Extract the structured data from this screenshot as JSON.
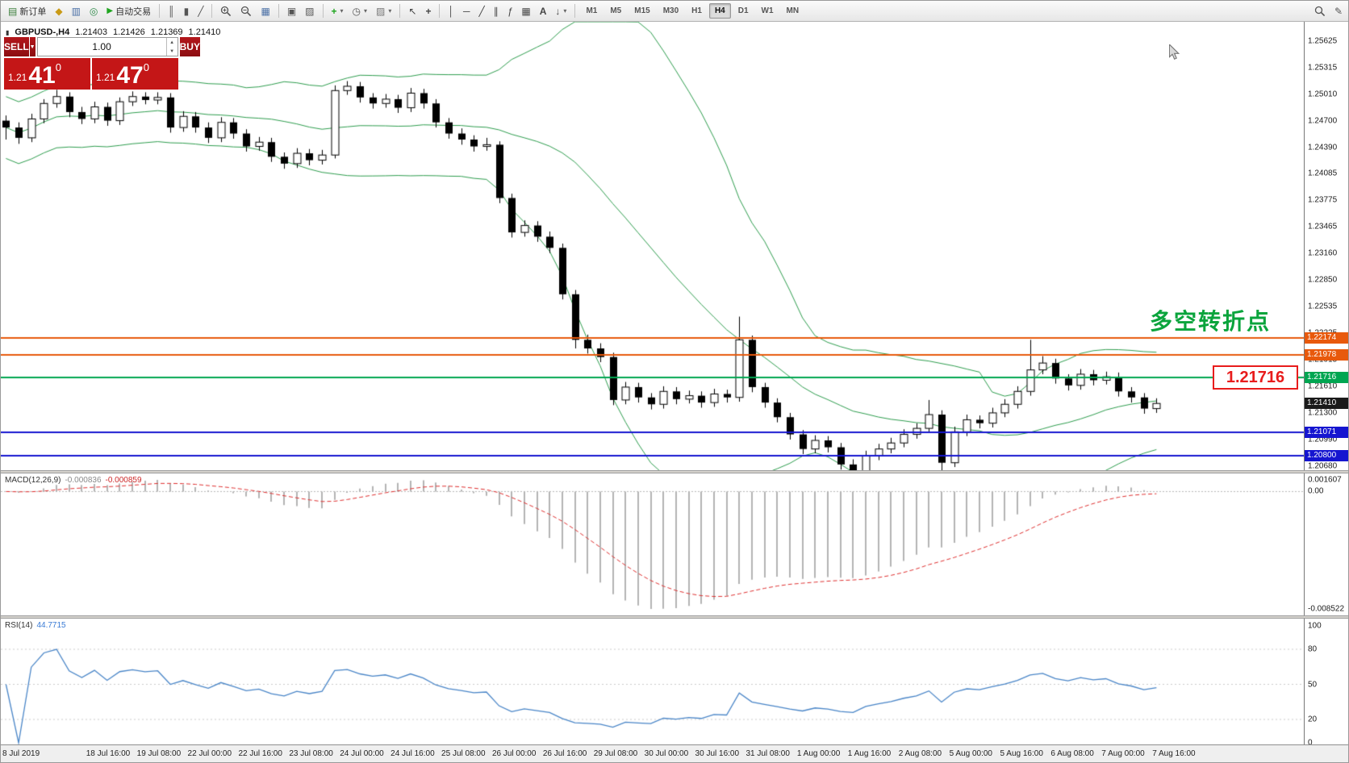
{
  "toolbar": {
    "new_order": "新订单",
    "auto_trading": "自动交易",
    "timeframes": [
      "M1",
      "M5",
      "M15",
      "M30",
      "H1",
      "H4",
      "D1",
      "W1",
      "MN"
    ],
    "active_timeframe": "H4"
  },
  "icons": {
    "chart_doc": "▤",
    "market_watch": "◆",
    "data_window": "▥",
    "navigator": "◎",
    "play": "▶",
    "bar_chart": "║",
    "candle_chart": "▮",
    "line_chart": "╱",
    "grid": "▦",
    "tile": "▣",
    "clock": "◷",
    "template": "▨",
    "cursor": "↖",
    "crosshair": "+",
    "vline": "│",
    "hline": "─",
    "tline": "╱",
    "channel": "∥",
    "fibo": "ƒ",
    "text": "A",
    "arrow_tool": "↓",
    "caret": "▾",
    "pencil": "✎",
    "spin_up": "▲",
    "spin_down": "▼",
    "sell_caret": "▼",
    "symbol_marker": "▮"
  },
  "symbol_bar": {
    "symbol": "GBPUSD-,H4",
    "open": "1.21403",
    "high": "1.21426",
    "low": "1.21369",
    "close": "1.21410"
  },
  "trade_panel": {
    "sell_label": "SELL",
    "buy_label": "BUY",
    "volume": "1.00",
    "sell_price_prefix": "1.21",
    "sell_price_big": "41",
    "sell_price_sup": "0",
    "buy_price_prefix": "1.21",
    "buy_price_big": "47",
    "buy_price_sup": "0"
  },
  "main_chart": {
    "annotation": "多空转折点",
    "price_tag": "1.21716",
    "levels": [
      {
        "label": "1.22174",
        "value": 1.22174,
        "color": "#e8590c"
      },
      {
        "label": "1.21978",
        "value": 1.21978,
        "color": "#e8590c"
      },
      {
        "label": "1.21716",
        "value": 1.21716,
        "color": "#00a651"
      },
      {
        "label": "1.21071",
        "value": 1.21071,
        "color": "#1515d0"
      },
      {
        "label": "1.20800",
        "value": 1.208,
        "color": "#1515d0"
      }
    ],
    "current_price": {
      "label": "1.21410",
      "value": 1.2141,
      "color": "#1a1a1a"
    },
    "y_ticks": [
      "1.25625",
      "1.25315",
      "1.25010",
      "1.24700",
      "1.24390",
      "1.24085",
      "1.23775",
      "1.23465",
      "1.23160",
      "1.22850",
      "1.22535",
      "1.22225",
      "1.21915",
      "1.21610",
      "1.21300",
      "1.20990",
      "1.20680"
    ],
    "x_labels": [
      "8 Jul 2019",
      "18 Jul 16:00",
      "19 Jul 08:00",
      "22 Jul 00:00",
      "22 Jul 16:00",
      "23 Jul 08:00",
      "24 Jul 00:00",
      "24 Jul 16:00",
      "25 Jul 08:00",
      "26 Jul 00:00",
      "26 Jul 16:00",
      "29 Jul 08:00",
      "30 Jul 00:00",
      "30 Jul 16:00",
      "31 Jul 08:00",
      "1 Aug 00:00",
      "1 Aug 16:00",
      "2 Aug 08:00",
      "5 Aug 00:00",
      "5 Aug 16:00",
      "6 Aug 08:00",
      "7 Aug 00:00",
      "7 Aug 16:00"
    ]
  },
  "macd_panel": {
    "title": "MACD(12,26,9)",
    "value_main": "-0.000836",
    "value_signal": "-0.000859",
    "scale": [
      "0.001607",
      "0.00",
      "-0.008522"
    ]
  },
  "rsi_panel": {
    "title": "RSI(14)",
    "value": "44.7715",
    "scale": [
      "100",
      "80",
      "50",
      "20",
      "0"
    ],
    "level_lines": [
      80,
      50,
      20
    ]
  },
  "chart_data": {
    "type": "candlestick",
    "symbol": "GBPUSD",
    "timeframe": "H4",
    "indicators": {
      "bollinger": {
        "period": 20,
        "deviation": 2
      },
      "macd": {
        "fast": 12,
        "slow": 26,
        "signal_period": 9
      },
      "rsi": {
        "period": 14
      }
    },
    "horizontal_lines": [
      1.22174,
      1.21978,
      1.21716,
      1.21071,
      1.208
    ],
    "candles": [
      [
        1.247,
        1.2476,
        1.2448,
        1.2462
      ],
      [
        1.2462,
        1.2468,
        1.2443,
        1.245
      ],
      [
        1.245,
        1.2478,
        1.2445,
        1.2472
      ],
      [
        1.2472,
        1.2495,
        1.2467,
        1.249
      ],
      [
        1.249,
        1.2506,
        1.2485,
        1.2498
      ],
      [
        1.2498,
        1.2503,
        1.2474,
        1.248
      ],
      [
        1.248,
        1.2486,
        1.2466,
        1.2472
      ],
      [
        1.2472,
        1.2492,
        1.2467,
        1.2486
      ],
      [
        1.2486,
        1.2491,
        1.2464,
        1.247
      ],
      [
        1.247,
        1.2497,
        1.2465,
        1.2492
      ],
      [
        1.2492,
        1.2504,
        1.2487,
        1.2498
      ],
      [
        1.2498,
        1.2503,
        1.2489,
        1.2494
      ],
      [
        1.2494,
        1.2503,
        1.2489,
        1.2497
      ],
      [
        1.2497,
        1.2502,
        1.2456,
        1.2462
      ],
      [
        1.2462,
        1.2481,
        1.2457,
        1.2475
      ],
      [
        1.2475,
        1.248,
        1.2456,
        1.2462
      ],
      [
        1.2462,
        1.2468,
        1.2444,
        1.245
      ],
      [
        1.245,
        1.2474,
        1.2445,
        1.2468
      ],
      [
        1.2468,
        1.2473,
        1.2449,
        1.2455
      ],
      [
        1.2455,
        1.246,
        1.2434,
        1.244
      ],
      [
        1.244,
        1.2451,
        1.2435,
        1.2445
      ],
      [
        1.2445,
        1.245,
        1.2422,
        1.2428
      ],
      [
        1.2428,
        1.2433,
        1.2414,
        1.242
      ],
      [
        1.242,
        1.2438,
        1.2415,
        1.2432
      ],
      [
        1.2432,
        1.2437,
        1.2418,
        1.2424
      ],
      [
        1.2424,
        1.2436,
        1.2419,
        1.243
      ],
      [
        1.243,
        1.2511,
        1.2426,
        1.2505
      ],
      [
        1.2505,
        1.2516,
        1.25,
        1.251
      ],
      [
        1.251,
        1.2515,
        1.2491,
        1.2497
      ],
      [
        1.2497,
        1.2502,
        1.2484,
        1.249
      ],
      [
        1.249,
        1.2501,
        1.2485,
        1.2495
      ],
      [
        1.2495,
        1.25,
        1.2479,
        1.2485
      ],
      [
        1.2485,
        1.2508,
        1.248,
        1.2502
      ],
      [
        1.2502,
        1.2507,
        1.2484,
        1.249
      ],
      [
        1.249,
        1.2495,
        1.2462,
        1.2468
      ],
      [
        1.2468,
        1.2473,
        1.2449,
        1.2455
      ],
      [
        1.2455,
        1.2461,
        1.2442,
        1.2448
      ],
      [
        1.2448,
        1.2453,
        1.2434,
        1.244
      ],
      [
        1.244,
        1.245,
        1.2435,
        1.2442
      ],
      [
        1.2442,
        1.2446,
        1.2374,
        1.238
      ],
      [
        1.238,
        1.2385,
        1.2334,
        1.234
      ],
      [
        1.234,
        1.2354,
        1.2335,
        1.2348
      ],
      [
        1.2348,
        1.2353,
        1.2329,
        1.2335
      ],
      [
        1.2335,
        1.2341,
        1.2316,
        1.2322
      ],
      [
        1.2322,
        1.2327,
        1.2262,
        1.2268
      ],
      [
        1.2268,
        1.2273,
        1.2205,
        1.2215
      ],
      [
        1.2215,
        1.2221,
        1.2199,
        1.2205
      ],
      [
        1.2205,
        1.2211,
        1.2189,
        1.2195
      ],
      [
        1.2195,
        1.22,
        1.2139,
        1.2145
      ],
      [
        1.2145,
        1.2166,
        1.214,
        1.216
      ],
      [
        1.216,
        1.2165,
        1.2142,
        1.2148
      ],
      [
        1.2148,
        1.2153,
        1.2134,
        1.214
      ],
      [
        1.214,
        1.2161,
        1.2135,
        1.2155
      ],
      [
        1.2155,
        1.216,
        1.214,
        1.2146
      ],
      [
        1.2146,
        1.2156,
        1.2141,
        1.215
      ],
      [
        1.215,
        1.2155,
        1.2136,
        1.2142
      ],
      [
        1.2142,
        1.2158,
        1.2137,
        1.2152
      ],
      [
        1.2152,
        1.2157,
        1.2142,
        1.2148
      ],
      [
        1.2148,
        1.2242,
        1.2143,
        1.2215
      ],
      [
        1.2215,
        1.222,
        1.2154,
        1.216
      ],
      [
        1.216,
        1.2165,
        1.2136,
        1.2142
      ],
      [
        1.2142,
        1.2147,
        1.2119,
        1.2125
      ],
      [
        1.2125,
        1.213,
        1.2099,
        1.2105
      ],
      [
        1.2105,
        1.211,
        1.2082,
        1.2088
      ],
      [
        1.2088,
        1.2104,
        1.2083,
        1.2098
      ],
      [
        1.2098,
        1.2103,
        1.2084,
        1.209
      ],
      [
        1.209,
        1.2095,
        1.2064,
        1.207
      ],
      [
        1.207,
        1.2076,
        1.2055,
        1.2062
      ],
      [
        1.2062,
        1.2086,
        1.2057,
        1.208
      ],
      [
        1.208,
        1.2094,
        1.2075,
        1.2088
      ],
      [
        1.2088,
        1.2101,
        1.2083,
        1.2095
      ],
      [
        1.2095,
        1.2111,
        1.209,
        1.2105
      ],
      [
        1.2105,
        1.2118,
        1.21,
        1.2112
      ],
      [
        1.2112,
        1.2145,
        1.2107,
        1.2128
      ],
      [
        1.2128,
        1.2133,
        1.2062,
        1.2072
      ],
      [
        1.2072,
        1.2114,
        1.2067,
        1.2108
      ],
      [
        1.2108,
        1.2128,
        1.2103,
        1.2122
      ],
      [
        1.2122,
        1.2127,
        1.2112,
        1.2118
      ],
      [
        1.2118,
        1.2136,
        1.2113,
        1.213
      ],
      [
        1.213,
        1.2146,
        1.2125,
        1.214
      ],
      [
        1.214,
        1.2161,
        1.2135,
        1.2155
      ],
      [
        1.2155,
        1.2215,
        1.215,
        1.218
      ],
      [
        1.218,
        1.2196,
        1.2175,
        1.2188
      ],
      [
        1.2188,
        1.2193,
        1.2164,
        1.217
      ],
      [
        1.217,
        1.2175,
        1.2156,
        1.2162
      ],
      [
        1.2162,
        1.2181,
        1.2157,
        1.2175
      ],
      [
        1.2175,
        1.218,
        1.2162,
        1.2168
      ],
      [
        1.2168,
        1.2178,
        1.2163,
        1.2172
      ],
      [
        1.2172,
        1.2177,
        1.2149,
        1.2155
      ],
      [
        1.2155,
        1.216,
        1.2142,
        1.2148
      ],
      [
        1.2148,
        1.2153,
        1.2129,
        1.2135
      ],
      [
        1.2135,
        1.2147,
        1.213,
        1.2141
      ]
    ]
  }
}
